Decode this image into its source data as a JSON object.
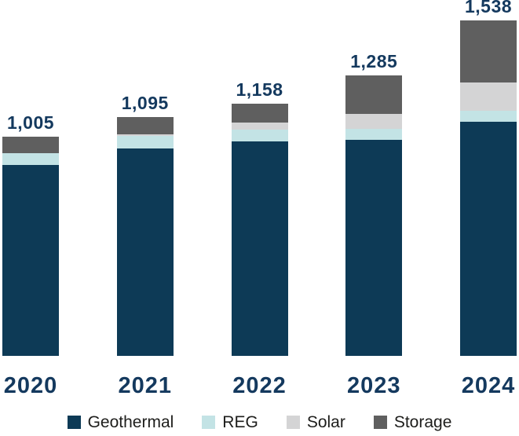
{
  "chart_data": {
    "type": "bar",
    "stacked": true,
    "title": "",
    "xlabel": "",
    "ylabel": "",
    "grid": false,
    "legend_position": "bottom",
    "ylim": [
      0,
      1600
    ],
    "categories": [
      "2020",
      "2021",
      "2022",
      "2023",
      "2024"
    ],
    "series": [
      {
        "name": "Geothermal",
        "color": "#0D3A56",
        "values": [
          875,
          950,
          985,
          990,
          1075
        ]
      },
      {
        "name": "REG",
        "color": "#C3E3E5",
        "values": [
          55,
          60,
          53,
          50,
          50
        ]
      },
      {
        "name": "Solar",
        "color": "#D4D4D5",
        "values": [
          0,
          5,
          33,
          70,
          130
        ]
      },
      {
        "name": "Storage",
        "color": "#5F5F5F",
        "values": [
          75,
          80,
          87,
          175,
          283
        ]
      }
    ],
    "totals": [
      1005,
      1095,
      1158,
      1285,
      1538
    ],
    "total_labels": [
      "1,005",
      "1,095",
      "1,158",
      "1,285",
      "1,538"
    ]
  },
  "colors": {
    "value_label_text": "#14395E",
    "year_label_text": "#14395E",
    "legend_text": "#1D1D1B",
    "background": "#FFFFFF"
  }
}
